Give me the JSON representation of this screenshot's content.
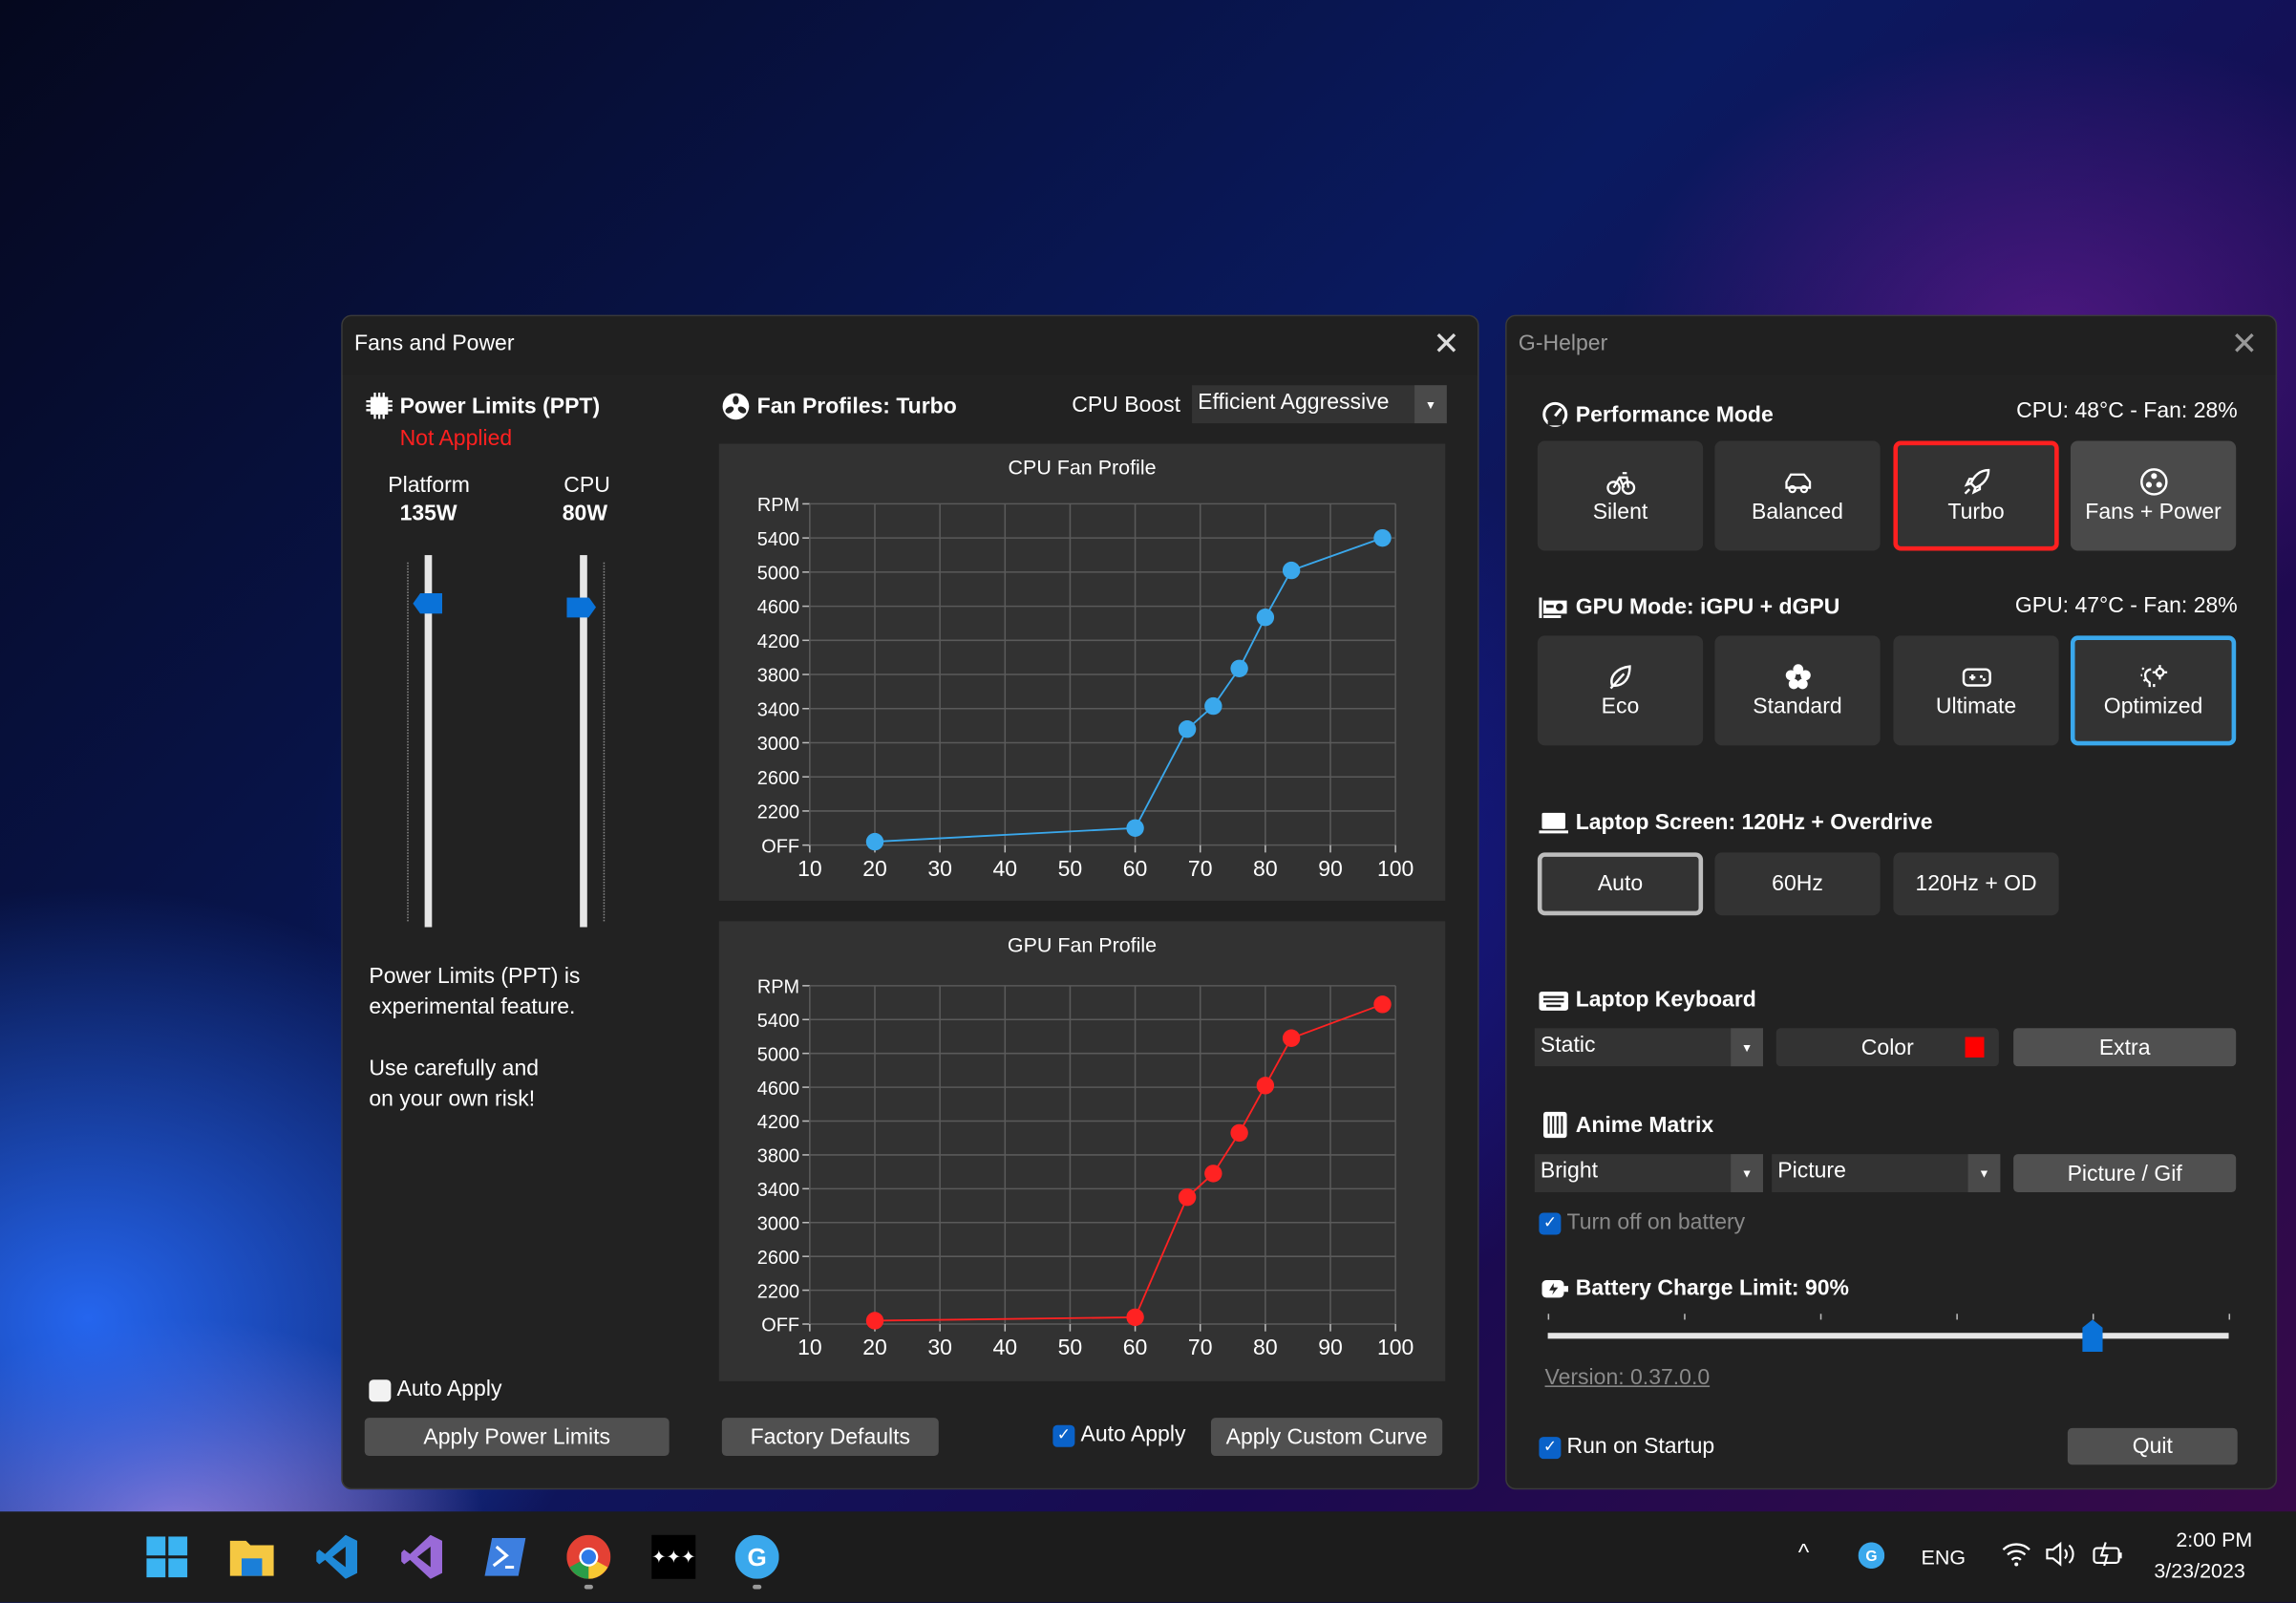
{
  "fans_window": {
    "title": "Fans and Power",
    "close_icon": "close-icon",
    "power": {
      "title": "Power Limits (PPT)",
      "status": "Not Applied",
      "status_color": "#ff2020",
      "platform_label": "Platform",
      "platform_value": "135W",
      "platform_level": 0.87,
      "cpu_label": "CPU",
      "cpu_value": "80W",
      "cpu_level": 0.86,
      "note1_line1": "Power Limits (PPT) is",
      "note1_line2": "experimental feature.",
      "note2_line1": "Use carefully and",
      "note2_line2": "on your own risk!",
      "auto_apply_label": "Auto Apply",
      "auto_apply_checked": false,
      "apply_button": "Apply Power Limits"
    },
    "fans": {
      "title": "Fan Profiles: Turbo",
      "cpu_boost_label": "CPU Boost",
      "cpu_boost_value": "Efficient Aggressive",
      "factory_defaults_button": "Factory Defaults",
      "auto_apply_label": "Auto Apply",
      "auto_apply_checked": true,
      "apply_curve_button": "Apply Custom Curve"
    }
  },
  "chart_data": [
    {
      "type": "line",
      "title": "CPU Fan Profile",
      "color": "#3aa8ec",
      "x": [
        20,
        60,
        68,
        72,
        76,
        80,
        84,
        98
      ],
      "y": [
        1840,
        2000,
        3160,
        3430,
        3870,
        4470,
        5020,
        5400
      ],
      "xlim": [
        10,
        100
      ],
      "ylim": [
        1800,
        5800
      ],
      "x_ticks": [
        "10",
        "20",
        "30",
        "40",
        "50",
        "60",
        "70",
        "80",
        "90",
        "100"
      ],
      "y_ticks": [
        "OFF",
        "2200",
        "2600",
        "3000",
        "3400",
        "3800",
        "4200",
        "4600",
        "5000",
        "5400",
        "RPM"
      ],
      "grid": true
    },
    {
      "type": "line",
      "title": "GPU Fan Profile",
      "color": "#ff2222",
      "x": [
        20,
        60,
        68,
        72,
        76,
        80,
        84,
        98
      ],
      "y": [
        1840,
        1880,
        3300,
        3580,
        4060,
        4620,
        5180,
        5580
      ],
      "xlim": [
        10,
        100
      ],
      "ylim": [
        1800,
        5800
      ],
      "x_ticks": [
        "10",
        "20",
        "30",
        "40",
        "50",
        "60",
        "70",
        "80",
        "90",
        "100"
      ],
      "y_ticks": [
        "OFF",
        "2200",
        "2600",
        "3000",
        "3400",
        "3800",
        "4200",
        "4600",
        "5000",
        "5400",
        "RPM"
      ],
      "grid": true
    }
  ],
  "ghelper": {
    "title": "G-Helper",
    "performance": {
      "title": "Performance Mode",
      "status": "CPU: 48°C -  Fan: 28%",
      "modes": [
        {
          "label": "Silent",
          "icon": "bicycle-icon"
        },
        {
          "label": "Balanced",
          "icon": "car-icon"
        },
        {
          "label": "Turbo",
          "icon": "rocket-icon",
          "selected": true,
          "accent": "#ff2020"
        },
        {
          "label": "Fans + Power",
          "icon": "fan-icon"
        }
      ]
    },
    "gpu": {
      "title": "GPU Mode: iGPU + dGPU",
      "status": "GPU: 47°C -  Fan: 28%",
      "modes": [
        {
          "label": "Eco",
          "icon": "leaf-icon"
        },
        {
          "label": "Standard",
          "icon": "flower-icon"
        },
        {
          "label": "Ultimate",
          "icon": "gamepad-icon"
        },
        {
          "label": "Optimized",
          "icon": "bulb-gear-icon",
          "selected": true,
          "accent": "#3aa8ec"
        }
      ]
    },
    "screen": {
      "title": "Laptop Screen: 120Hz + Overdrive",
      "options": [
        "Auto",
        "60Hz",
        "120Hz + OD"
      ],
      "selected": "Auto"
    },
    "keyboard": {
      "title": "Laptop Keyboard",
      "mode_value": "Static",
      "color_label": "Color",
      "color_value": "#ff0000",
      "extra_label": "Extra"
    },
    "anime": {
      "title": "Anime Matrix",
      "brightness_value": "Bright",
      "mode_value": "Picture",
      "picture_button": "Picture / Gif",
      "turn_off_label": "Turn off on battery",
      "turn_off_checked": true
    },
    "battery": {
      "title": "Battery Charge Limit: 90%",
      "value": 90,
      "min": 50,
      "max": 100
    },
    "version": "Version: 0.37.0.0",
    "run_on_startup_label": "Run on Startup",
    "run_on_startup_checked": true,
    "quit_button": "Quit"
  },
  "taskbar": {
    "apps": [
      "start-icon",
      "file-explorer-icon",
      "vscode-icon",
      "visual-studio-icon",
      "powershell-icon",
      "chrome-icon",
      "tidal-icon",
      "ghelper-icon"
    ],
    "tray": {
      "language": "ENG",
      "time": "2:00 PM",
      "date": "3/23/2023"
    }
  }
}
